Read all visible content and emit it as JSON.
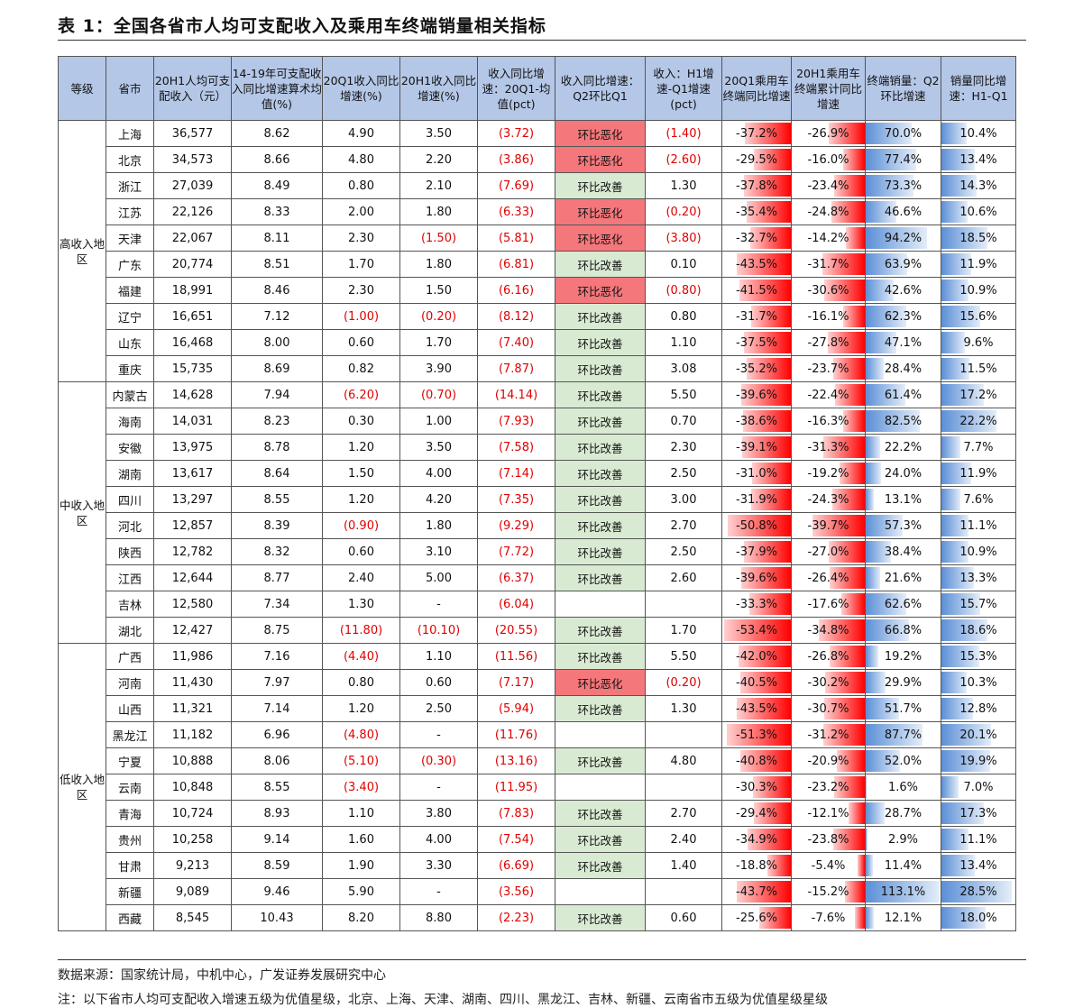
{
  "title": "表 1：全国各省市人均可支配收入及乘用车终端销量相关指标",
  "headers": [
    "等级",
    "省市",
    "20H1人均可支配收入（元）",
    "14-19年可支配收入同比增速算术均值(%)",
    "20Q1收入同比增速(%)",
    "20H1收入同比增速(%)",
    "收入同比增速：20Q1-均值(pct)",
    "收入同比增速：Q2环比Q1",
    "收入：H1增速-Q1增速(pct)",
    "20Q1乘用车终端同比增速",
    "20H1乘用车终端累计同比增速",
    "终端销量：Q2环比增速",
    "销量同比增速：H1-Q1"
  ],
  "groups": [
    {
      "label": "高收入地区",
      "rows": [
        [
          "上海",
          "36,577",
          "8.62",
          "4.90",
          "3.50",
          "(3.72)",
          "环比恶化",
          "(1.40)",
          -37.2,
          -26.9,
          70.0,
          10.4
        ],
        [
          "北京",
          "34,573",
          "8.66",
          "4.80",
          "2.20",
          "(3.86)",
          "环比恶化",
          "(2.60)",
          -29.5,
          -16.0,
          77.4,
          13.4
        ],
        [
          "浙江",
          "27,039",
          "8.49",
          "0.80",
          "2.10",
          "(7.69)",
          "环比改善",
          "1.30",
          -37.8,
          -23.4,
          73.3,
          14.3
        ],
        [
          "江苏",
          "22,126",
          "8.33",
          "2.00",
          "1.80",
          "(6.33)",
          "环比恶化",
          "(0.20)",
          -35.4,
          -24.8,
          46.6,
          10.6
        ],
        [
          "天津",
          "22,067",
          "8.11",
          "2.30",
          "(1.50)",
          "(5.81)",
          "环比恶化",
          "(3.80)",
          -32.7,
          -14.2,
          94.2,
          18.5
        ],
        [
          "广东",
          "20,774",
          "8.51",
          "1.70",
          "1.80",
          "(6.81)",
          "环比改善",
          "0.10",
          -43.5,
          -31.7,
          63.9,
          11.9
        ],
        [
          "福建",
          "18,991",
          "8.46",
          "2.30",
          "1.50",
          "(6.16)",
          "环比恶化",
          "(0.80)",
          -41.5,
          -30.6,
          42.6,
          10.9
        ],
        [
          "辽宁",
          "16,651",
          "7.12",
          "(1.00)",
          "(0.20)",
          "(8.12)",
          "环比改善",
          "0.80",
          -31.7,
          -16.1,
          62.3,
          15.6
        ],
        [
          "山东",
          "16,468",
          "8.00",
          "0.60",
          "1.70",
          "(7.40)",
          "环比改善",
          "1.10",
          -37.5,
          -27.8,
          47.1,
          9.6
        ],
        [
          "重庆",
          "15,735",
          "8.69",
          "0.82",
          "3.90",
          "(7.87)",
          "环比改善",
          "3.08",
          -35.2,
          -23.7,
          28.4,
          11.5
        ]
      ]
    },
    {
      "label": "中收入地区",
      "rows": [
        [
          "内蒙古",
          "14,628",
          "7.94",
          "(6.20)",
          "(0.70)",
          "(14.14)",
          "环比改善",
          "5.50",
          -39.6,
          -22.4,
          61.4,
          17.2
        ],
        [
          "海南",
          "14,031",
          "8.23",
          "0.30",
          "1.00",
          "(7.93)",
          "环比改善",
          "0.70",
          -38.6,
          -16.3,
          82.5,
          22.2
        ],
        [
          "安徽",
          "13,975",
          "8.78",
          "1.20",
          "3.50",
          "(7.58)",
          "环比改善",
          "2.30",
          -39.1,
          -31.3,
          22.2,
          7.7
        ],
        [
          "湖南",
          "13,617",
          "8.64",
          "1.50",
          "4.00",
          "(7.14)",
          "环比改善",
          "2.50",
          -31.0,
          -19.2,
          24.0,
          11.9
        ],
        [
          "四川",
          "13,297",
          "8.55",
          "1.20",
          "4.20",
          "(7.35)",
          "环比改善",
          "3.00",
          -31.9,
          -24.3,
          13.1,
          7.6
        ],
        [
          "河北",
          "12,857",
          "8.39",
          "(0.90)",
          "1.80",
          "(9.29)",
          "环比改善",
          "2.70",
          -50.8,
          -39.7,
          57.3,
          11.1
        ],
        [
          "陕西",
          "12,782",
          "8.32",
          "0.60",
          "3.10",
          "(7.72)",
          "环比改善",
          "2.50",
          -37.9,
          -27.0,
          38.4,
          10.9
        ],
        [
          "江西",
          "12,644",
          "8.77",
          "2.40",
          "5.00",
          "(6.37)",
          "环比改善",
          "2.60",
          -39.6,
          -26.4,
          21.6,
          13.3
        ],
        [
          "吉林",
          "12,580",
          "7.34",
          "1.30",
          "-",
          "(6.04)",
          "",
          "",
          -33.3,
          -17.6,
          62.6,
          15.7
        ],
        [
          "湖北",
          "12,427",
          "8.75",
          "(11.80)",
          "(10.10)",
          "(20.55)",
          "环比改善",
          "1.70",
          -53.4,
          -34.8,
          66.8,
          18.6
        ]
      ]
    },
    {
      "label": "低收入地区",
      "rows": [
        [
          "广西",
          "11,986",
          "7.16",
          "(4.40)",
          "1.10",
          "(11.56)",
          "环比改善",
          "5.50",
          -42.0,
          -26.8,
          19.2,
          15.3
        ],
        [
          "河南",
          "11,430",
          "7.97",
          "0.80",
          "0.60",
          "(7.17)",
          "环比恶化",
          "(0.20)",
          -40.5,
          -30.2,
          29.9,
          10.3
        ],
        [
          "山西",
          "11,321",
          "7.14",
          "1.20",
          "2.50",
          "(5.94)",
          "环比改善",
          "1.30",
          -43.5,
          -30.7,
          51.7,
          12.8
        ],
        [
          "黑龙江",
          "11,182",
          "6.96",
          "(4.80)",
          "-",
          "(11.76)",
          "",
          "",
          -51.3,
          -31.2,
          87.7,
          20.1
        ],
        [
          "宁夏",
          "10,888",
          "8.06",
          "(5.10)",
          "(0.30)",
          "(13.16)",
          "环比改善",
          "4.80",
          -40.8,
          -20.9,
          52.0,
          19.9
        ],
        [
          "云南",
          "10,848",
          "8.55",
          "(3.40)",
          "-",
          "(11.95)",
          "",
          "",
          -30.3,
          -23.2,
          1.6,
          7.0
        ],
        [
          "青海",
          "10,724",
          "8.93",
          "1.10",
          "3.80",
          "(7.83)",
          "环比改善",
          "2.70",
          -29.4,
          -12.1,
          28.7,
          17.3
        ],
        [
          "贵州",
          "10,258",
          "9.14",
          "1.60",
          "4.00",
          "(7.54)",
          "环比改善",
          "2.40",
          -34.9,
          -23.8,
          2.9,
          11.1
        ],
        [
          "甘肃",
          "9,213",
          "8.59",
          "1.90",
          "3.30",
          "(6.69)",
          "环比改善",
          "1.40",
          -18.8,
          -5.4,
          11.4,
          13.4
        ],
        [
          "新疆",
          "9,089",
          "9.46",
          "5.90",
          "-",
          "(3.56)",
          "",
          "",
          -43.7,
          -15.2,
          113.1,
          28.5
        ],
        [
          "西藏",
          "8,545",
          "10.43",
          "8.20",
          "8.80",
          "(2.23)",
          "环比改善",
          "0.60",
          -25.6,
          -7.6,
          12.1,
          18.0
        ]
      ]
    }
  ],
  "source": "数据来源：国家统计局，中机中心，广发证券发展研究中心",
  "note": "注：以下省市人均可支配收入增速五级为优值星级，北京、上海、天津、湖南、四川、黑龙江、吉林、新疆、云南省市五级为优值星级星级",
  "colors": {
    "header_bg": "#b4c7e7",
    "worse_bg": "#f4777b",
    "better_bg": "#d9ead3",
    "negative_text": "#e00000",
    "bar_red": "#ff0000",
    "bar_blue": "#5b8fd6"
  }
}
